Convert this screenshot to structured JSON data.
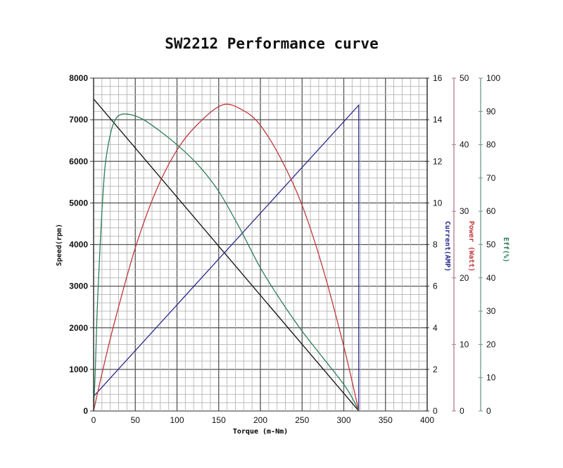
{
  "chart_data": {
    "type": "line",
    "title": "SW2212 Performance curve",
    "xlabel": "Torque (m-Nm)",
    "xlim": [
      0,
      400
    ],
    "x_ticks": [
      "0",
      "50",
      "100",
      "150",
      "200",
      "250",
      "300",
      "350",
      "400"
    ],
    "grid": true,
    "axes": [
      {
        "id": "speed",
        "label": "Speed(rpm)",
        "side": "left",
        "lim": [
          0,
          8000
        ],
        "ticks": [
          "0",
          "1000",
          "2000",
          "3000",
          "4000",
          "5000",
          "6000",
          "7000",
          "8000"
        ],
        "color": "#111111"
      },
      {
        "id": "current",
        "label": "Current(AMP)",
        "side": "right",
        "lim": [
          0,
          16
        ],
        "ticks": [
          "0",
          "2",
          "4",
          "6",
          "8",
          "10",
          "12",
          "14",
          "16"
        ],
        "color": "#2a2a8c"
      },
      {
        "id": "power",
        "label": "Power (Watt)",
        "side": "right",
        "lim": [
          0,
          50
        ],
        "ticks": [
          "0",
          "10",
          "20",
          "30",
          "40",
          "50"
        ],
        "color": "#c0393b"
      },
      {
        "id": "eff",
        "label": "Eff(%)",
        "side": "right",
        "lim": [
          0,
          100
        ],
        "ticks": [
          "0",
          "10",
          "20",
          "30",
          "40",
          "50",
          "60",
          "70",
          "80",
          "90",
          "100"
        ],
        "color": "#2e7d5b"
      }
    ],
    "series": [
      {
        "name": "Speed",
        "axis": "speed",
        "color": "#111111",
        "x": [
          0,
          318
        ],
        "y": [
          7500,
          0
        ]
      },
      {
        "name": "Current",
        "axis": "current",
        "color": "#2a2a8c",
        "x": [
          0,
          318,
          318
        ],
        "y": [
          0.7,
          14.7,
          0
        ]
      },
      {
        "name": "Power",
        "axis": "power",
        "color": "#c0393b",
        "x": [
          0,
          10,
          25,
          50,
          75,
          100,
          125,
          155,
          180,
          200,
          225,
          250,
          275,
          300,
          318
        ],
        "y": [
          0,
          5.6,
          13.3,
          24.5,
          33.1,
          39.2,
          43.1,
          46,
          45.1,
          42.9,
          37.8,
          30.9,
          21.4,
          9.7,
          0
        ]
      },
      {
        "name": "Efficiency",
        "axis": "eff",
        "color": "#2e7d5b",
        "x": [
          0,
          2,
          4,
          6,
          10,
          14,
          20,
          25,
          32,
          45,
          60,
          80,
          100,
          125,
          150,
          175,
          200,
          225,
          250,
          275,
          300,
          310,
          318
        ],
        "y": [
          0,
          12,
          28,
          40,
          60,
          74,
          83,
          87,
          89,
          89,
          87.5,
          84,
          80,
          74,
          66,
          55,
          43,
          33,
          24,
          16,
          8,
          4,
          0
        ]
      }
    ]
  }
}
